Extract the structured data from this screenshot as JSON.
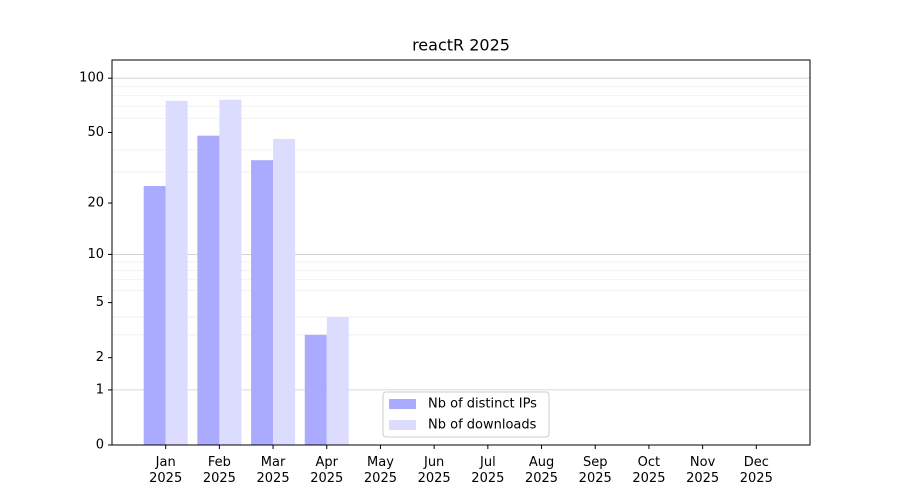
{
  "chart_data": {
    "type": "bar",
    "title": "reactR 2025",
    "categories": [
      "Jan\n2025",
      "Feb\n2025",
      "Mar\n2025",
      "Apr\n2025",
      "May\n2025",
      "Jun\n2025",
      "Jul\n2025",
      "Aug\n2025",
      "Sep\n2025",
      "Oct\n2025",
      "Nov\n2025",
      "Dec\n2025"
    ],
    "series": [
      {
        "name": "Nb of distinct IPs",
        "color": "#aaaaff",
        "values": [
          25,
          48,
          35,
          3,
          null,
          null,
          null,
          null,
          null,
          null,
          null,
          null
        ]
      },
      {
        "name": "Nb of downloads",
        "color": "#dcdcff",
        "values": [
          75,
          76,
          46,
          4,
          null,
          null,
          null,
          null,
          null,
          null,
          null,
          null
        ]
      }
    ],
    "yscale": "log1p",
    "ylim": [
      0,
      126
    ],
    "yticks": [
      0,
      1,
      2,
      5,
      10,
      20,
      50,
      100
    ],
    "major_grid": [
      1,
      10,
      100
    ],
    "minor_grid": [
      3,
      4,
      6,
      7,
      8,
      9,
      30,
      40,
      60,
      70,
      80,
      90
    ],
    "legend": "lower center"
  }
}
